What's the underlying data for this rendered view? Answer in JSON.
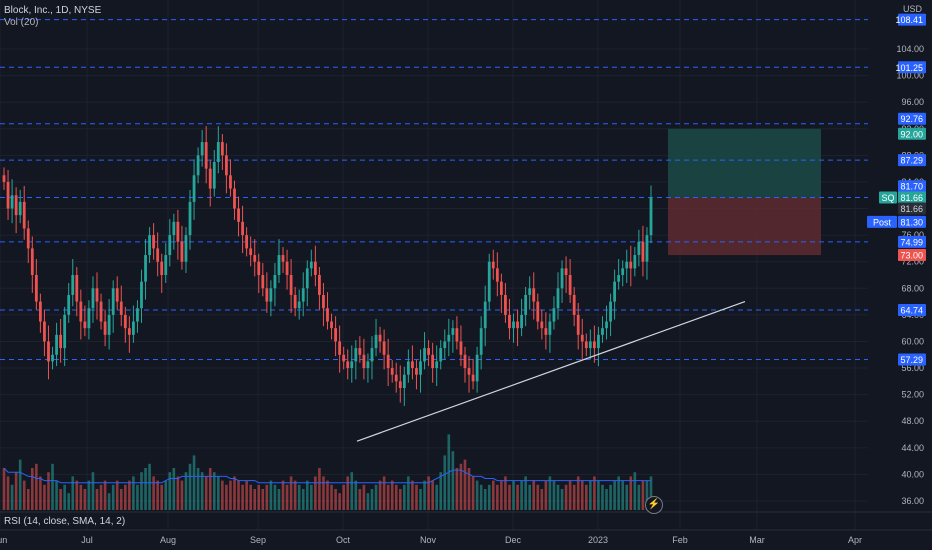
{
  "legend": {
    "title": "Block, Inc., 1D, NYSE",
    "volume": "Vol (20)"
  },
  "rsi_label": "RSI (14, close, SMA, 14, 2)",
  "currency": "USD",
  "replay_icon": "replay-icon",
  "colors": {
    "up": "#26a69a",
    "down": "#ef5350",
    "bg": "#131722",
    "hline": "#2962ff",
    "profit_zone": "#1b4a45",
    "loss_zone": "#5e2a30",
    "trendline": "#d1d4dc",
    "vol_ma": "#2962ff"
  },
  "axis": {
    "y_ticks": [
      "104.00",
      "100.00",
      "96.00",
      "92.00",
      "88.00",
      "84.00",
      "80.00",
      "76.00",
      "72.00",
      "68.00",
      "64.00",
      "60.00",
      "56.00",
      "52.00",
      "48.00",
      "44.00",
      "40.00",
      "36.00"
    ],
    "x_ticks": [
      "Jun",
      "Jul",
      "Aug",
      "Sep",
      "Oct",
      "Nov",
      "Dec",
      "2023",
      "Feb",
      "Mar",
      "Apr"
    ]
  },
  "price_labels": [
    {
      "text": "108.41",
      "value": 108.41,
      "style": "blue"
    },
    {
      "text": "101.25",
      "value": 101.25,
      "style": "blue"
    },
    {
      "text": "92.76",
      "value": 92.76,
      "style": "blue"
    },
    {
      "text": "92.00",
      "value": 92.0,
      "style": "teal"
    },
    {
      "text": "87.29",
      "value": 87.29,
      "style": "blue"
    },
    {
      "text": "81.70",
      "value": 81.7,
      "style": "blue"
    },
    {
      "text": "81.66",
      "value": 81.66,
      "style": "teal",
      "tag": "SQ"
    },
    {
      "text": "81.66",
      "value": 81.66,
      "style": "dark"
    },
    {
      "text": "81.30",
      "value": 81.3,
      "style": "blue",
      "tag": "Post"
    },
    {
      "text": "74.99",
      "value": 74.99,
      "style": "blue"
    },
    {
      "text": "73.00",
      "value": 73.0,
      "style": "red"
    },
    {
      "text": "64.74",
      "value": 64.74,
      "style": "blue"
    },
    {
      "text": "57.29",
      "value": 57.29,
      "style": "blue"
    }
  ],
  "chart_data": {
    "type": "candlestick",
    "title": "Block, Inc., 1D, NYSE",
    "ylim": [
      34,
      111
    ],
    "horizontal_levels": [
      108.41,
      101.25,
      92.76,
      87.29,
      81.66,
      74.99,
      64.74,
      57.29
    ],
    "position_tool": {
      "entry": 81.66,
      "target": 92.0,
      "stop": 73.0
    },
    "trendline": [
      {
        "date": "2022-10-03",
        "price": 45
      },
      {
        "date": "2023-03-10",
        "price": 66
      }
    ],
    "last_close": 81.66,
    "post_market": 81.3,
    "closes": [
      84,
      80,
      82,
      79,
      81,
      77,
      74,
      70,
      66,
      63,
      60,
      57,
      58,
      61,
      59,
      64,
      67,
      70,
      66,
      63,
      62,
      65,
      68,
      66,
      63,
      61,
      64,
      68,
      66,
      64,
      62,
      61,
      63,
      65,
      69,
      73,
      76,
      74,
      72,
      70,
      73,
      76,
      78,
      75,
      72,
      76,
      81,
      85,
      88,
      90,
      86,
      83,
      87,
      90,
      88,
      85,
      83,
      80,
      78,
      76,
      74,
      73,
      72,
      70,
      68,
      66,
      68,
      70,
      73,
      72,
      70,
      67,
      65,
      66,
      68,
      71,
      72,
      70,
      67,
      65,
      63,
      62,
      60,
      58,
      57,
      56,
      57,
      59,
      58,
      56,
      57,
      59,
      61,
      60,
      58,
      56,
      55,
      54,
      53,
      55,
      57,
      56,
      55,
      57,
      59,
      58,
      56,
      57,
      59,
      60,
      61,
      62,
      60,
      58,
      56,
      55,
      54,
      58,
      62,
      66,
      72,
      71,
      69,
      67,
      64,
      62,
      63,
      62,
      64,
      67,
      68,
      66,
      63,
      62,
      61,
      63,
      65,
      68,
      71,
      70,
      67,
      64,
      61,
      60,
      59,
      60,
      59,
      61,
      62,
      63,
      66,
      69,
      70,
      71,
      72,
      71,
      73,
      75,
      72,
      76,
      81.66
    ],
    "volumes": [
      44,
      42,
      40,
      43,
      46,
      41,
      39,
      44,
      45,
      42,
      40,
      43,
      45,
      41,
      39,
      40,
      38,
      42,
      41,
      40,
      39,
      41,
      43,
      39,
      40,
      41,
      38,
      40,
      41,
      39,
      40,
      41,
      42,
      40,
      43,
      44,
      45,
      42,
      41,
      40,
      41,
      43,
      44,
      42,
      41,
      43,
      45,
      47,
      44,
      43,
      42,
      44,
      43,
      42,
      41,
      40,
      41,
      42,
      41,
      40,
      41,
      40,
      39,
      40,
      39,
      40,
      41,
      40,
      39,
      41,
      40,
      42,
      41,
      40,
      39,
      41,
      40,
      42,
      44,
      42,
      41,
      40,
      39,
      38,
      40,
      42,
      43,
      41,
      39,
      40,
      38,
      39,
      40,
      41,
      42,
      40,
      41,
      40,
      39,
      40,
      42,
      41,
      40,
      39,
      41,
      42,
      41,
      40,
      43,
      47,
      52,
      48,
      44,
      45,
      46,
      44,
      42,
      41,
      40,
      39,
      40,
      41,
      40,
      41,
      42,
      40,
      41,
      40,
      41,
      42,
      40,
      41,
      40,
      39,
      41,
      42,
      41,
      40,
      39,
      40,
      41,
      40,
      42,
      41,
      40,
      41,
      42,
      41,
      40,
      39,
      40,
      41,
      42,
      41,
      40,
      42,
      43,
      40,
      41,
      41,
      42
    ],
    "volume_ma": [
      44,
      43,
      43,
      43,
      43,
      42.5,
      42,
      42,
      41.5,
      41.5,
      41,
      41,
      41,
      41,
      40.5,
      40.5,
      40.5,
      40.5,
      40.5,
      40.5,
      40.5,
      40.5,
      40.5,
      40.5,
      40.5,
      40.5,
      40.5,
      40.5,
      40.5,
      40.5,
      40.5,
      40.5,
      40.5,
      40.5,
      40.5,
      40.5,
      40.5,
      40.5,
      40.5,
      40.5,
      41,
      41.5,
      41.5,
      41.5,
      42,
      42,
      42,
      42,
      42,
      42,
      42,
      42,
      42,
      42,
      42,
      42,
      41.5,
      41.5,
      41,
      41,
      41,
      41,
      41,
      40.5,
      40.5,
      40.5,
      40.5,
      40.5,
      40.5,
      40.5,
      40.5,
      40.5,
      40.5,
      40.5,
      40.5,
      40.5,
      40.5,
      40.5,
      40.5,
      40.5,
      40.5,
      40.5,
      40.5,
      40.5,
      40.5,
      40.5,
      40.5,
      40.5,
      40.5,
      40.5,
      40.5,
      40.5,
      40.5,
      40.5,
      40.5,
      40.5,
      40.5,
      40.5,
      40.5,
      40.5,
      40.5,
      40.5,
      40.5,
      40.5,
      40.5,
      40.5,
      41,
      41.5,
      42,
      42.5,
      43,
      43.5,
      43.5,
      43.5,
      43,
      42.5,
      42,
      42,
      42,
      41.5,
      41.5,
      41.5,
      41,
      41,
      41,
      41,
      41,
      41,
      41,
      41,
      41,
      41,
      41,
      41,
      41,
      41,
      41,
      41,
      41,
      41,
      41,
      41,
      41,
      41,
      41,
      41,
      41,
      41,
      41,
      41,
      41,
      41,
      41,
      41,
      41,
      41,
      41,
      41,
      41,
      41,
      41,
      41,
      41
    ]
  }
}
